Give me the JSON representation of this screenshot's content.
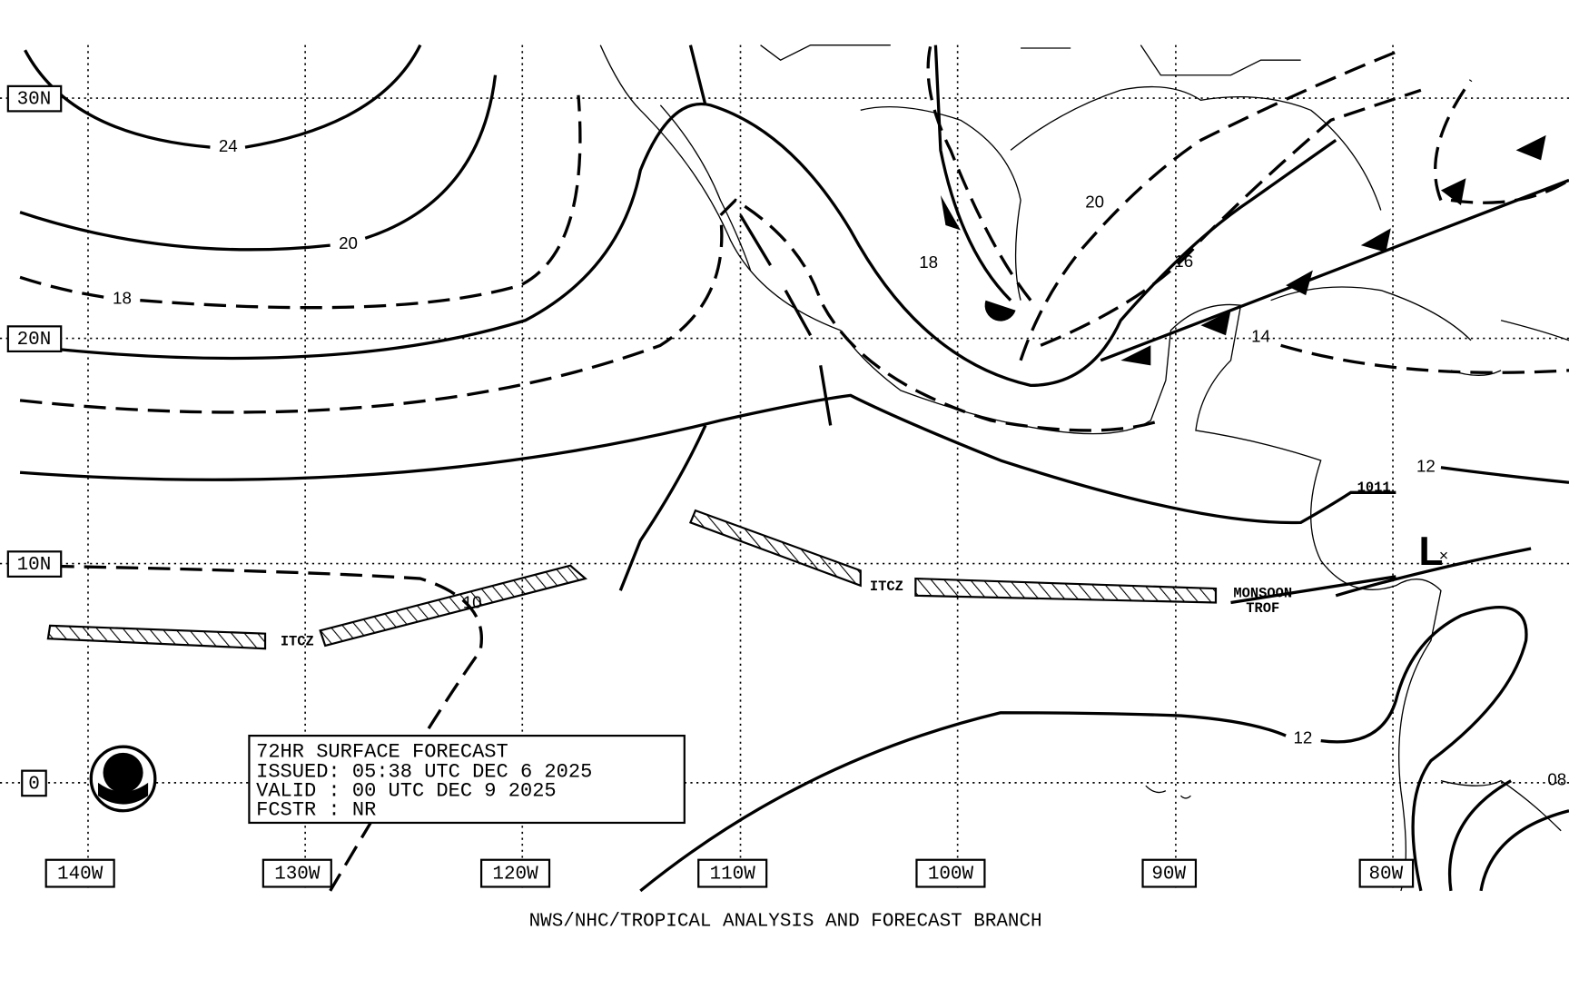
{
  "latitude_labels": [
    "30N",
    "20N",
    "10N",
    "0"
  ],
  "longitude_labels": [
    "140W",
    "130W",
    "120W",
    "110W",
    "100W",
    "90W",
    "80W"
  ],
  "isobar_labels": [
    "24",
    "20",
    "18",
    "20",
    "18",
    "16",
    "14",
    "12",
    "12",
    "10",
    "08",
    "1011"
  ],
  "feature_labels": [
    "ITCZ",
    "ITCZ",
    "MONSOON",
    "TROF",
    "L"
  ],
  "info_box": [
    "72HR SURFACE FORECAST",
    "ISSUED: 05:38 UTC DEC 6 2025",
    "VALID : 00 UTC DEC 9 2025",
    "FCSTR : NR"
  ],
  "footer": "NWS/NHC/TROPICAL ANALYSIS AND FORECAST BRANCH"
}
